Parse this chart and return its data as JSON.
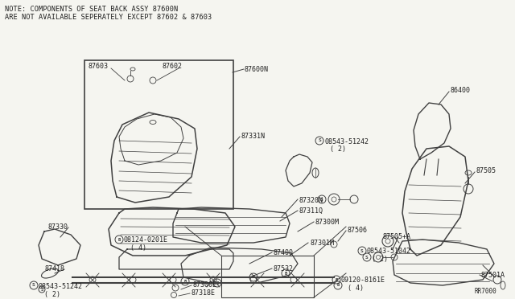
{
  "bg_color": "#f5f5f0",
  "line_color": "#404040",
  "text_color": "#202020",
  "note_line1": "NOTE: COMPONENTS OF SEAT BACK ASSY 87600N",
  "note_line2": "ARE NOT AVAILABLE SEPERATELY EXCEPT 87602 & 87603",
  "ref_code": "RR7000",
  "figsize": [
    6.4,
    3.72
  ],
  "dpi": 100
}
